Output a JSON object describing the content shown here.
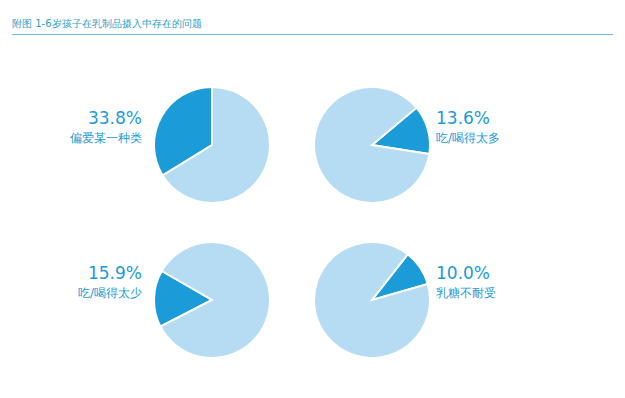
{
  "title": "附图 1-6岁孩子在乳制品摄入中存在的问题",
  "chart_data": [
    {
      "type": "pie",
      "title": "偏爱某一种类",
      "values": [
        33.8,
        66.2
      ],
      "value_labels": [
        "33.8%",
        null
      ],
      "colors": [
        "#1b9bd7",
        "#b5dcf2"
      ]
    },
    {
      "type": "pie",
      "title": "吃/喝得太多",
      "values": [
        13.6,
        86.4
      ],
      "value_labels": [
        "13.6%",
        null
      ],
      "colors": [
        "#1b9bd7",
        "#b5dcf2"
      ]
    },
    {
      "type": "pie",
      "title": "吃/喝得太少",
      "values": [
        15.9,
        84.1
      ],
      "value_labels": [
        "15.9%",
        null
      ],
      "colors": [
        "#1b9bd7",
        "#b5dcf2"
      ]
    },
    {
      "type": "pie",
      "title": "乳糖不耐受",
      "values": [
        10.0,
        90.0
      ],
      "value_labels": [
        "10.0%",
        null
      ],
      "colors": [
        "#1b9bd7",
        "#b5dcf2"
      ]
    }
  ]
}
